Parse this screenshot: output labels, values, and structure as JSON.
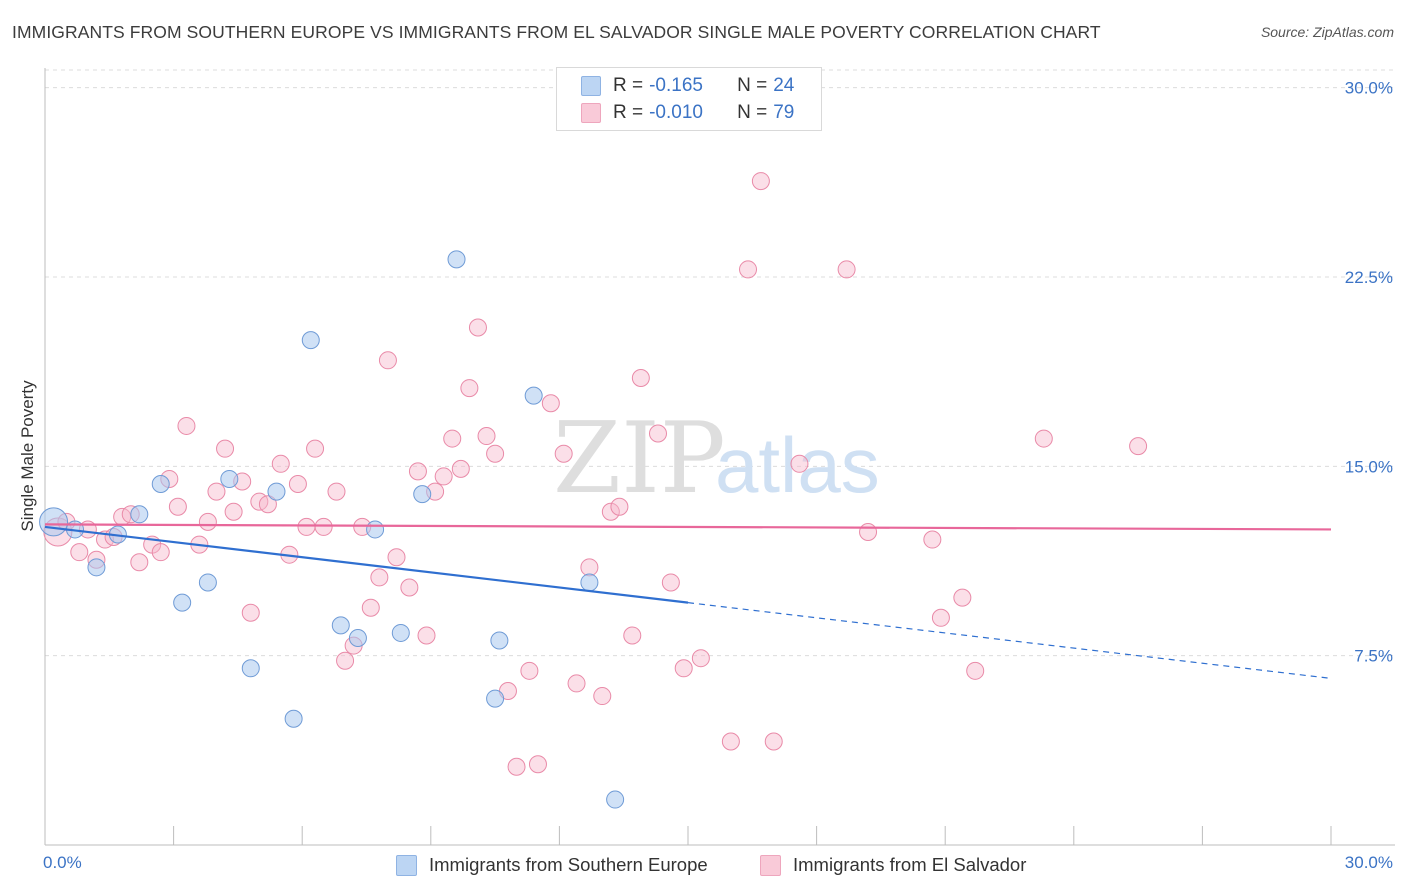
{
  "title": "IMMIGRANTS FROM SOUTHERN EUROPE VS IMMIGRANTS FROM EL SALVADOR SINGLE MALE POVERTY CORRELATION CHART",
  "source": "Source: ZipAtlas.com",
  "watermark": {
    "zip": "ZIP",
    "atlas": "atlas"
  },
  "legend": {
    "rows": [
      {
        "r_label": "R = ",
        "r_value": "-0.165",
        "n_label": "N = ",
        "n_value": "24"
      },
      {
        "r_label": "R = ",
        "r_value": "-0.010",
        "n_label": "N = ",
        "n_value": "79"
      }
    ]
  },
  "chart_data": {
    "type": "scatter",
    "title": "IMMIGRANTS FROM SOUTHERN EUROPE VS IMMIGRANTS FROM EL SALVADOR SINGLE MALE POVERTY CORRELATION CHART",
    "xlabel": "",
    "ylabel": "Single Male Poverty",
    "xlim": [
      0,
      30
    ],
    "ylim": [
      0,
      30.7
    ],
    "x_tick_labels": [
      "0.0%",
      "30.0%"
    ],
    "y_ticks": [
      {
        "value": 7.5,
        "label": "7.5%"
      },
      {
        "value": 15.0,
        "label": "15.0%"
      },
      {
        "value": 22.5,
        "label": "22.5%"
      },
      {
        "value": 30.0,
        "label": "30.0%"
      }
    ],
    "grid": true,
    "legend_position": "top-center",
    "series": [
      {
        "name": "Immigrants from Southern Europe",
        "color": "#a9c8ef",
        "edge": "#6f9bd6",
        "line_color": "#2f6fd0",
        "trend": {
          "x0": 0,
          "y0": 12.6,
          "x1": 15,
          "y1": 9.6,
          "x_dash_end": 30,
          "y_dash_end": 6.6
        },
        "points": [
          [
            0.2,
            12.8
          ],
          [
            0.7,
            12.5
          ],
          [
            1.2,
            11.0
          ],
          [
            1.7,
            12.3
          ],
          [
            2.2,
            13.1
          ],
          [
            2.7,
            14.3
          ],
          [
            3.2,
            9.6
          ],
          [
            3.8,
            10.4
          ],
          [
            4.3,
            14.5
          ],
          [
            4.8,
            7.0
          ],
          [
            5.4,
            14.0
          ],
          [
            5.8,
            5.0
          ],
          [
            6.2,
            20.0
          ],
          [
            6.9,
            8.7
          ],
          [
            7.3,
            8.2
          ],
          [
            7.7,
            12.5
          ],
          [
            8.3,
            8.4
          ],
          [
            8.8,
            13.9
          ],
          [
            9.6,
            23.2
          ],
          [
            10.5,
            5.8
          ],
          [
            10.6,
            8.1
          ],
          [
            11.4,
            17.8
          ],
          [
            12.7,
            10.4
          ],
          [
            13.3,
            1.8
          ]
        ]
      },
      {
        "name": "Immigrants from El Salvador",
        "color": "#f6b8cb",
        "edge": "#e98aa8",
        "line_color": "#e8679a",
        "trend": {
          "x0": 0,
          "y0": 12.7,
          "x1": 30,
          "y1": 12.5
        },
        "points": [
          [
            0.3,
            12.4
          ],
          [
            0.5,
            12.8
          ],
          [
            0.8,
            11.6
          ],
          [
            1.0,
            12.5
          ],
          [
            1.2,
            11.3
          ],
          [
            1.4,
            12.1
          ],
          [
            1.6,
            12.2
          ],
          [
            1.8,
            13.0
          ],
          [
            2.0,
            13.1
          ],
          [
            2.2,
            11.2
          ],
          [
            2.5,
            11.9
          ],
          [
            2.7,
            11.6
          ],
          [
            2.9,
            14.5
          ],
          [
            3.1,
            13.4
          ],
          [
            3.3,
            16.6
          ],
          [
            3.6,
            11.9
          ],
          [
            3.8,
            12.8
          ],
          [
            4.0,
            14.0
          ],
          [
            4.2,
            15.7
          ],
          [
            4.4,
            13.2
          ],
          [
            4.6,
            14.4
          ],
          [
            4.8,
            9.2
          ],
          [
            5.0,
            13.6
          ],
          [
            5.2,
            13.5
          ],
          [
            5.5,
            15.1
          ],
          [
            5.7,
            11.5
          ],
          [
            5.9,
            14.3
          ],
          [
            6.1,
            12.6
          ],
          [
            6.3,
            15.7
          ],
          [
            6.5,
            12.6
          ],
          [
            6.8,
            14.0
          ],
          [
            7.0,
            7.3
          ],
          [
            7.2,
            7.9
          ],
          [
            7.4,
            12.6
          ],
          [
            7.6,
            9.4
          ],
          [
            7.8,
            10.6
          ],
          [
            8.0,
            19.2
          ],
          [
            8.2,
            11.4
          ],
          [
            8.5,
            10.2
          ],
          [
            8.7,
            14.8
          ],
          [
            8.9,
            8.3
          ],
          [
            9.1,
            14.0
          ],
          [
            9.3,
            14.6
          ],
          [
            9.5,
            16.1
          ],
          [
            9.7,
            14.9
          ],
          [
            9.9,
            18.1
          ],
          [
            10.1,
            20.5
          ],
          [
            10.3,
            16.2
          ],
          [
            10.5,
            15.5
          ],
          [
            10.8,
            6.1
          ],
          [
            11.0,
            3.1
          ],
          [
            11.3,
            6.9
          ],
          [
            11.5,
            3.2
          ],
          [
            11.8,
            17.5
          ],
          [
            12.1,
            15.5
          ],
          [
            12.4,
            6.4
          ],
          [
            12.7,
            11.0
          ],
          [
            13.0,
            5.9
          ],
          [
            13.2,
            13.2
          ],
          [
            13.4,
            13.4
          ],
          [
            13.7,
            8.3
          ],
          [
            13.9,
            18.5
          ],
          [
            14.3,
            16.3
          ],
          [
            14.6,
            10.4
          ],
          [
            14.9,
            7.0
          ],
          [
            15.3,
            7.4
          ],
          [
            16.0,
            4.1
          ],
          [
            16.4,
            22.8
          ],
          [
            16.7,
            26.3
          ],
          [
            17.0,
            4.1
          ],
          [
            17.6,
            15.1
          ],
          [
            18.7,
            22.8
          ],
          [
            19.2,
            12.4
          ],
          [
            20.7,
            12.1
          ],
          [
            20.9,
            9.0
          ],
          [
            21.4,
            9.8
          ],
          [
            21.7,
            6.9
          ],
          [
            23.3,
            16.1
          ],
          [
            25.5,
            15.8
          ]
        ]
      }
    ]
  }
}
